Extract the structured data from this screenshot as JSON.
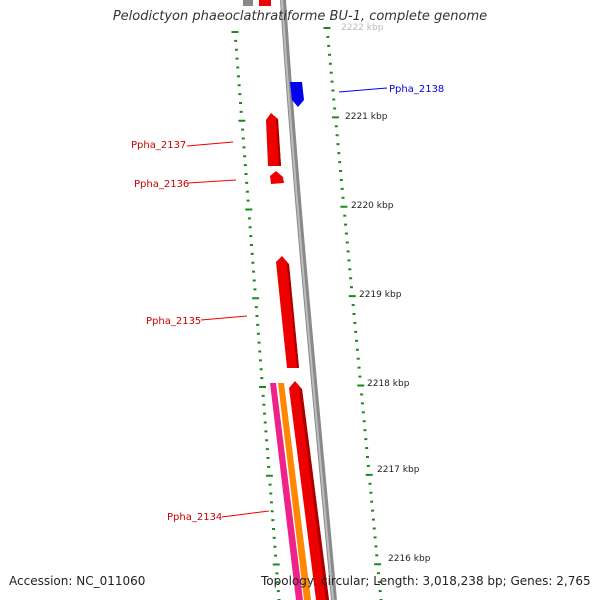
{
  "title": "Pelodictyon phaeoclathratiforme BU-1, complete genome",
  "accession": "Accession: NC_011060",
  "topology": "Topology: circular; Length: 3,018,238 bp; Genes: 2,765",
  "scale_ticks": [
    "2222 kbp",
    "2221 kbp",
    "2220 kbp",
    "2219 kbp",
    "2218 kbp",
    "2217 kbp",
    "2216 kbp"
  ],
  "genes": [
    {
      "name": "Ppha_2138",
      "strand": "reverse",
      "color": "#0000ee"
    },
    {
      "name": "Ppha_2137",
      "strand": "forward",
      "color": "#ee0000"
    },
    {
      "name": "Ppha_2136",
      "strand": "forward",
      "color": "#ee0000"
    },
    {
      "name": "Ppha_2135",
      "strand": "forward",
      "color": "#ee0000"
    },
    {
      "name": "Ppha_2134",
      "strand": "forward",
      "color": "#ee0000"
    }
  ],
  "colors": {
    "forward_gene": "#ee0000",
    "reverse_gene": "#0000ee",
    "backbone": "#888888",
    "tick": "#1a8a1a",
    "rna_pink": "#ee2288",
    "rna_orange": "#ff8800"
  }
}
